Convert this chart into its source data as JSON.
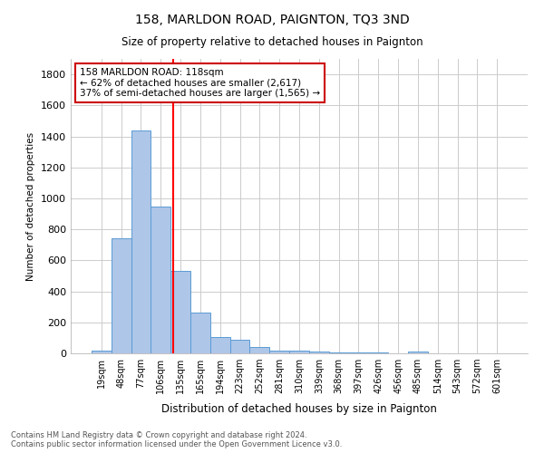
{
  "title": "158, MARLDON ROAD, PAIGNTON, TQ3 3ND",
  "subtitle": "Size of property relative to detached houses in Paignton",
  "xlabel": "Distribution of detached houses by size in Paignton",
  "ylabel": "Number of detached properties",
  "footnote": "Contains HM Land Registry data © Crown copyright and database right 2024.\nContains public sector information licensed under the Open Government Licence v3.0.",
  "categories": [
    "19sqm",
    "48sqm",
    "77sqm",
    "106sqm",
    "135sqm",
    "165sqm",
    "194sqm",
    "223sqm",
    "252sqm",
    "281sqm",
    "310sqm",
    "339sqm",
    "368sqm",
    "397sqm",
    "426sqm",
    "456sqm",
    "485sqm",
    "514sqm",
    "543sqm",
    "572sqm",
    "601sqm"
  ],
  "values": [
    20,
    740,
    1440,
    950,
    530,
    265,
    105,
    90,
    40,
    20,
    15,
    10,
    5,
    5,
    3,
    2,
    10,
    0,
    0,
    0,
    0
  ],
  "bar_color": "#aec6e8",
  "bar_edge_color": "#5b9bd5",
  "grid_color": "#cccccc",
  "red_line_x": 3.63,
  "annotation_text": "158 MARLDON ROAD: 118sqm\n← 62% of detached houses are smaller (2,617)\n37% of semi-detached houses are larger (1,565) →",
  "annotation_box_color": "#ffffff",
  "annotation_box_edge": "#cc0000",
  "ylim": [
    0,
    1900
  ],
  "yticks": [
    0,
    200,
    400,
    600,
    800,
    1000,
    1200,
    1400,
    1600,
    1800
  ]
}
